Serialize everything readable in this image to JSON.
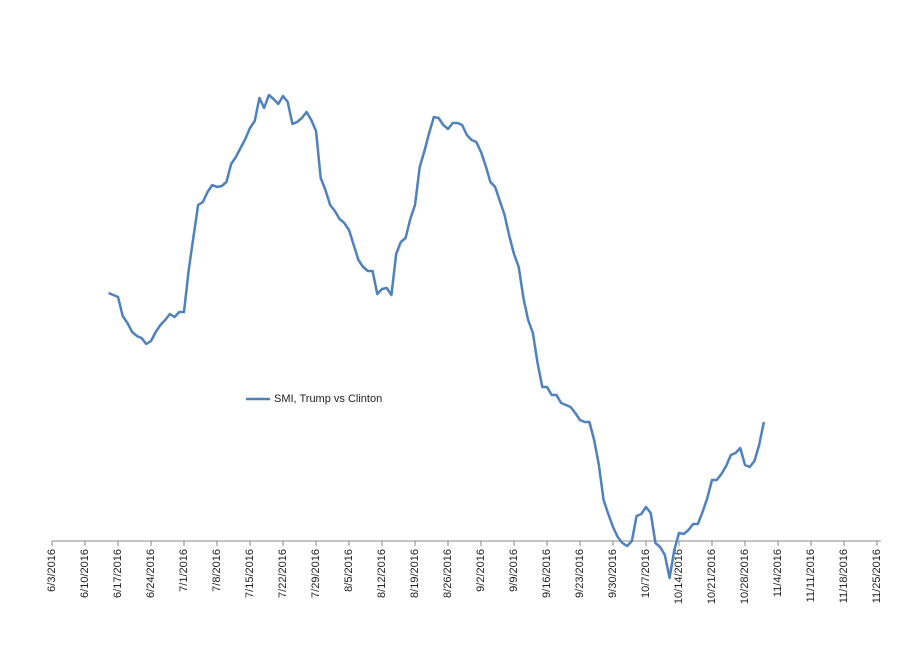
{
  "chart_data": {
    "type": "line",
    "series": [
      {
        "name": "SMI, Trump vs Clinton",
        "color": "#4f81bd",
        "x": [
          "6/15/2016",
          "6/17/2016",
          "6/18/2016",
          "6/19/2016",
          "6/20/2016",
          "6/21/2016",
          "6/22/2016",
          "6/23/2016",
          "6/24/2016",
          "6/25/2016",
          "6/26/2016",
          "6/27/2016",
          "6/28/2016",
          "6/29/2016",
          "6/30/2016",
          "7/1/2016",
          "7/2/2016",
          "7/3/2016",
          "7/4/2016",
          "7/5/2016",
          "7/6/2016",
          "7/7/2016",
          "7/8/2016",
          "7/9/2016",
          "7/10/2016",
          "7/11/2016",
          "7/12/2016",
          "7/13/2016",
          "7/14/2016",
          "7/15/2016",
          "7/16/2016",
          "7/17/2016",
          "7/18/2016",
          "7/19/2016",
          "7/20/2016",
          "7/21/2016",
          "7/22/2016",
          "7/23/2016",
          "7/24/2016",
          "7/25/2016",
          "7/26/2016",
          "7/27/2016",
          "7/28/2016",
          "7/29/2016",
          "7/30/2016",
          "7/31/2016",
          "8/1/2016",
          "8/2/2016",
          "8/3/2016",
          "8/4/2016",
          "8/5/2016",
          "8/6/2016",
          "8/7/2016",
          "8/8/2016",
          "8/9/2016",
          "8/10/2016",
          "8/11/2016",
          "8/12/2016",
          "8/13/2016",
          "8/14/2016",
          "8/15/2016",
          "8/16/2016",
          "8/17/2016",
          "8/18/2016",
          "8/19/2016",
          "8/20/2016",
          "8/21/2016",
          "8/22/2016",
          "8/23/2016",
          "8/24/2016",
          "8/25/2016",
          "8/26/2016",
          "8/27/2016",
          "8/28/2016",
          "8/29/2016",
          "8/30/2016",
          "8/31/2016",
          "9/1/2016",
          "9/2/2016",
          "9/3/2016",
          "9/4/2016",
          "9/5/2016",
          "9/6/2016",
          "9/7/2016",
          "9/8/2016",
          "9/9/2016",
          "9/10/2016",
          "9/11/2016",
          "9/12/2016",
          "9/13/2016",
          "9/14/2016",
          "9/15/2016",
          "9/16/2016",
          "9/17/2016",
          "9/18/2016",
          "9/19/2016",
          "9/20/2016",
          "9/21/2016",
          "9/22/2016",
          "9/23/2016",
          "9/24/2016",
          "9/25/2016",
          "9/26/2016",
          "9/27/2016",
          "9/28/2016",
          "9/29/2016",
          "9/30/2016",
          "10/1/2016",
          "10/2/2016",
          "10/3/2016",
          "10/4/2016",
          "10/5/2016",
          "10/6/2016",
          "10/7/2016",
          "10/8/2016",
          "10/9/2016",
          "10/10/2016",
          "10/11/2016",
          "10/12/2016",
          "10/13/2016",
          "10/14/2016",
          "10/15/2016",
          "10/16/2016",
          "10/17/2016",
          "10/18/2016",
          "10/19/2016",
          "10/20/2016",
          "10/21/2016",
          "10/22/2016",
          "10/23/2016",
          "10/24/2016",
          "10/25/2016",
          "10/26/2016",
          "10/27/2016",
          "10/28/2016",
          "10/29/2016",
          "10/30/2016",
          "10/31/2016",
          "11/1/2016"
        ],
        "values": [
          49.6,
          48.8,
          45,
          43.6,
          41.8,
          41,
          40.6,
          39.4,
          40,
          41.8,
          43.2,
          44.2,
          45.4,
          44.8,
          45.8,
          45.8,
          54.2,
          60.8,
          67.2,
          67.8,
          69.8,
          71.2,
          70.8,
          71,
          71.8,
          75.4,
          76.8,
          78.6,
          80.4,
          82.6,
          84,
          88.6,
          86.6,
          89.2,
          88.4,
          87.4,
          89,
          87.8,
          83.4,
          83.8,
          84.6,
          85.8,
          84.2,
          82,
          72.6,
          70.2,
          67.2,
          66,
          64.4,
          63.6,
          62.2,
          59.2,
          56.2,
          54.8,
          54,
          54,
          49.4,
          50.4,
          50.6,
          49.2,
          57.4,
          59.8,
          60.6,
          64.4,
          67.2,
          74.8,
          78,
          81.6,
          84.8,
          84.6,
          83.2,
          82.4,
          83.6,
          83.6,
          83.2,
          81.2,
          80.2,
          79.8,
          77.8,
          75,
          71.8,
          70.8,
          68,
          65.2,
          61,
          57.4,
          54.8,
          48.6,
          44.2,
          41.6,
          35.6,
          30.8,
          30.8,
          29.2,
          29.2,
          27.6,
          27.2,
          26.8,
          25.6,
          24.2,
          23.8,
          23.8,
          20.2,
          15.2,
          8.2,
          5.4,
          2.8,
          0.8,
          -0.4,
          -1,
          0,
          5,
          5.4,
          6.8,
          5.6,
          -0.4,
          -1.2,
          -2.8,
          -7.4,
          -1.8,
          1.6,
          1.4,
          2.2,
          3.4,
          3.4,
          5.8,
          8.6,
          12.2,
          12.2,
          13.4,
          15,
          17.2,
          17.6,
          18.6,
          15.2,
          14.8,
          16,
          19.2,
          23.8
        ]
      }
    ],
    "xlim": [
      "6/3/2016",
      "11/25/2016"
    ],
    "xticks": [
      "6/3/2016",
      "6/10/2016",
      "6/17/2016",
      "6/24/2016",
      "7/1/2016",
      "7/8/2016",
      "7/15/2016",
      "7/22/2016",
      "7/29/2016",
      "8/5/2016",
      "8/12/2016",
      "8/19/2016",
      "8/26/2016",
      "9/2/2016",
      "9/9/2016",
      "9/16/2016",
      "9/23/2016",
      "9/30/2016",
      "10/7/2016",
      "10/14/2016",
      "10/21/2016",
      "10/28/2016",
      "11/4/2016",
      "11/11/2016",
      "11/18/2016",
      "11/25/2016"
    ],
    "ylim": [
      -10,
      100
    ]
  }
}
